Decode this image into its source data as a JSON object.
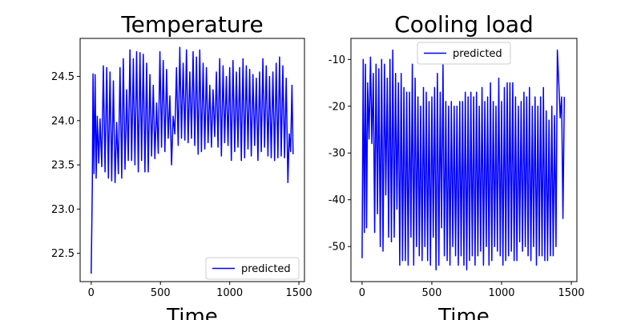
{
  "chart_data": [
    {
      "type": "line",
      "title": "Temperature",
      "xlabel": "Time",
      "ylabel": "",
      "xlim": [
        -80,
        1540
      ],
      "ylim": [
        22.18,
        24.93
      ],
      "xticks": [
        0,
        500,
        1000,
        1500
      ],
      "yticks": [
        22.5,
        23.0,
        23.5,
        24.0,
        24.5
      ],
      "legend": {
        "position": "lower right",
        "entries": [
          "predicted"
        ]
      },
      "series": [
        {
          "name": "predicted",
          "color": "#0000ff",
          "x": [
            0,
            8,
            13,
            20,
            28,
            36,
            44,
            54,
            64,
            76,
            88,
            100,
            112,
            124,
            136,
            148,
            160,
            172,
            184,
            196,
            208,
            220,
            232,
            244,
            256,
            268,
            280,
            292,
            304,
            316,
            328,
            340,
            352,
            364,
            376,
            388,
            400,
            412,
            424,
            436,
            448,
            460,
            472,
            484,
            496,
            508,
            520,
            532,
            544,
            556,
            568,
            580,
            592,
            604,
            616,
            628,
            640,
            652,
            664,
            676,
            688,
            700,
            712,
            724,
            736,
            748,
            760,
            772,
            784,
            796,
            808,
            820,
            832,
            844,
            856,
            868,
            880,
            892,
            904,
            916,
            928,
            940,
            952,
            964,
            976,
            988,
            1000,
            1012,
            1024,
            1036,
            1048,
            1060,
            1072,
            1084,
            1096,
            1108,
            1120,
            1132,
            1144,
            1156,
            1168,
            1180,
            1192,
            1204,
            1216,
            1228,
            1240,
            1252,
            1264,
            1276,
            1288,
            1300,
            1312,
            1324,
            1336,
            1348,
            1360,
            1372,
            1384,
            1396,
            1408,
            1420,
            1430,
            1440,
            1450,
            1458
          ],
          "y": [
            22.27,
            23.25,
            24.53,
            23.4,
            24.52,
            23.35,
            24.05,
            23.52,
            24.02,
            23.48,
            24.62,
            23.42,
            24.6,
            23.35,
            24.55,
            23.32,
            24.45,
            23.3,
            23.98,
            23.4,
            24.6,
            23.35,
            24.7,
            23.45,
            24.35,
            23.55,
            24.8,
            23.55,
            24.7,
            23.5,
            24.78,
            23.42,
            24.77,
            23.55,
            24.75,
            23.42,
            24.65,
            23.42,
            24.52,
            23.6,
            24.4,
            23.57,
            24.2,
            23.63,
            24.78,
            23.7,
            24.68,
            23.65,
            24.58,
            23.8,
            24.28,
            23.5,
            24.05,
            23.85,
            24.6,
            23.72,
            24.83,
            23.8,
            24.65,
            23.78,
            24.8,
            23.75,
            24.55,
            23.8,
            24.78,
            23.72,
            24.72,
            23.62,
            24.8,
            23.65,
            24.65,
            23.68,
            24.6,
            23.75,
            24.4,
            23.7,
            24.35,
            23.82,
            24.55,
            23.7,
            24.7,
            23.6,
            24.62,
            23.75,
            24.5,
            23.72,
            24.6,
            23.55,
            24.68,
            23.65,
            24.55,
            23.7,
            24.6,
            23.55,
            24.7,
            23.58,
            24.62,
            23.68,
            24.58,
            23.6,
            24.52,
            23.72,
            24.48,
            23.55,
            24.55,
            23.65,
            24.7,
            23.7,
            24.62,
            23.6,
            24.5,
            23.58,
            24.55,
            23.55,
            24.65,
            23.58,
            24.72,
            23.6,
            24.62,
            23.58,
            24.48,
            23.3,
            23.85,
            23.65,
            24.4,
            23.62
          ]
        }
      ]
    },
    {
      "type": "line",
      "title": "Cooling load",
      "xlabel": "Time",
      "ylabel": "",
      "xlim": [
        -80,
        1540
      ],
      "ylim": [
        -57.5,
        -5.5
      ],
      "xticks": [
        0,
        500,
        1000,
        1500
      ],
      "yticks": [
        -50,
        -40,
        -30,
        -20,
        -10
      ],
      "legend": {
        "position": "upper center",
        "entries": [
          "predicted"
        ]
      },
      "series": [
        {
          "name": "predicted",
          "color": "#0000ff",
          "x": [
            0,
            8,
            16,
            24,
            32,
            40,
            50,
            60,
            70,
            80,
            90,
            100,
            110,
            120,
            130,
            140,
            150,
            160,
            170,
            180,
            190,
            200,
            210,
            220,
            230,
            240,
            250,
            260,
            270,
            280,
            290,
            300,
            310,
            320,
            330,
            340,
            350,
            360,
            370,
            380,
            390,
            400,
            410,
            420,
            430,
            440,
            450,
            460,
            470,
            480,
            490,
            500,
            510,
            520,
            530,
            540,
            550,
            560,
            570,
            580,
            590,
            600,
            610,
            620,
            630,
            640,
            650,
            660,
            670,
            680,
            690,
            700,
            710,
            720,
            730,
            740,
            750,
            760,
            770,
            780,
            790,
            800,
            810,
            820,
            830,
            840,
            850,
            860,
            870,
            880,
            890,
            900,
            910,
            920,
            930,
            940,
            950,
            960,
            970,
            980,
            990,
            1000,
            1010,
            1020,
            1030,
            1040,
            1050,
            1060,
            1070,
            1080,
            1090,
            1100,
            1110,
            1120,
            1130,
            1140,
            1150,
            1160,
            1170,
            1180,
            1190,
            1200,
            1210,
            1220,
            1230,
            1240,
            1250,
            1260,
            1270,
            1280,
            1290,
            1300,
            1310,
            1320,
            1330,
            1340,
            1350,
            1360,
            1370,
            1380,
            1390,
            1400,
            1410,
            1420,
            1430,
            1440,
            1450
          ],
          "y": [
            -52.5,
            -10,
            -47,
            -11,
            -46,
            -15,
            -27,
            -9.5,
            -28,
            -13,
            -47,
            -11,
            -43,
            -12,
            -50,
            -10,
            -51,
            -11,
            -39,
            -14,
            -48,
            -10,
            -49,
            -8,
            -48,
            -13,
            -42,
            -15,
            -54,
            -13,
            -53,
            -16,
            -53,
            -17,
            -54,
            -17,
            -48,
            -11,
            -54,
            -14,
            -50,
            -18,
            -52,
            -20,
            -53,
            -16,
            -50,
            -17,
            -53,
            -19,
            -54,
            -18,
            -48,
            -16,
            -55,
            -13,
            -54,
            -17,
            -46,
            -11,
            -52,
            -19,
            -53,
            -20,
            -54,
            -19,
            -50,
            -20,
            -52,
            -20,
            -54,
            -19,
            -52,
            -19,
            -54,
            -17,
            -55,
            -18,
            -53,
            -17,
            -52,
            -18,
            -54,
            -17,
            -52,
            -20,
            -51,
            -16,
            -54,
            -19,
            -50,
            -18,
            -54,
            -15,
            -53,
            -19,
            -50,
            -20,
            -51,
            -14,
            -52,
            -19,
            -54,
            -16,
            -53,
            -15,
            -52,
            -15,
            -51,
            -15,
            -53,
            -18,
            -53,
            -20,
            -49,
            -19,
            -51,
            -17,
            -50,
            -18,
            -52,
            -16,
            -53,
            -20,
            -50,
            -18,
            -54,
            -20,
            -52,
            -18,
            -52,
            -16,
            -53,
            -21,
            -53,
            -23,
            -52,
            -20,
            -52,
            -22,
            -50,
            -8,
            -15,
            -22.5,
            -18,
            -44,
            -18
          ]
        }
      ]
    }
  ]
}
